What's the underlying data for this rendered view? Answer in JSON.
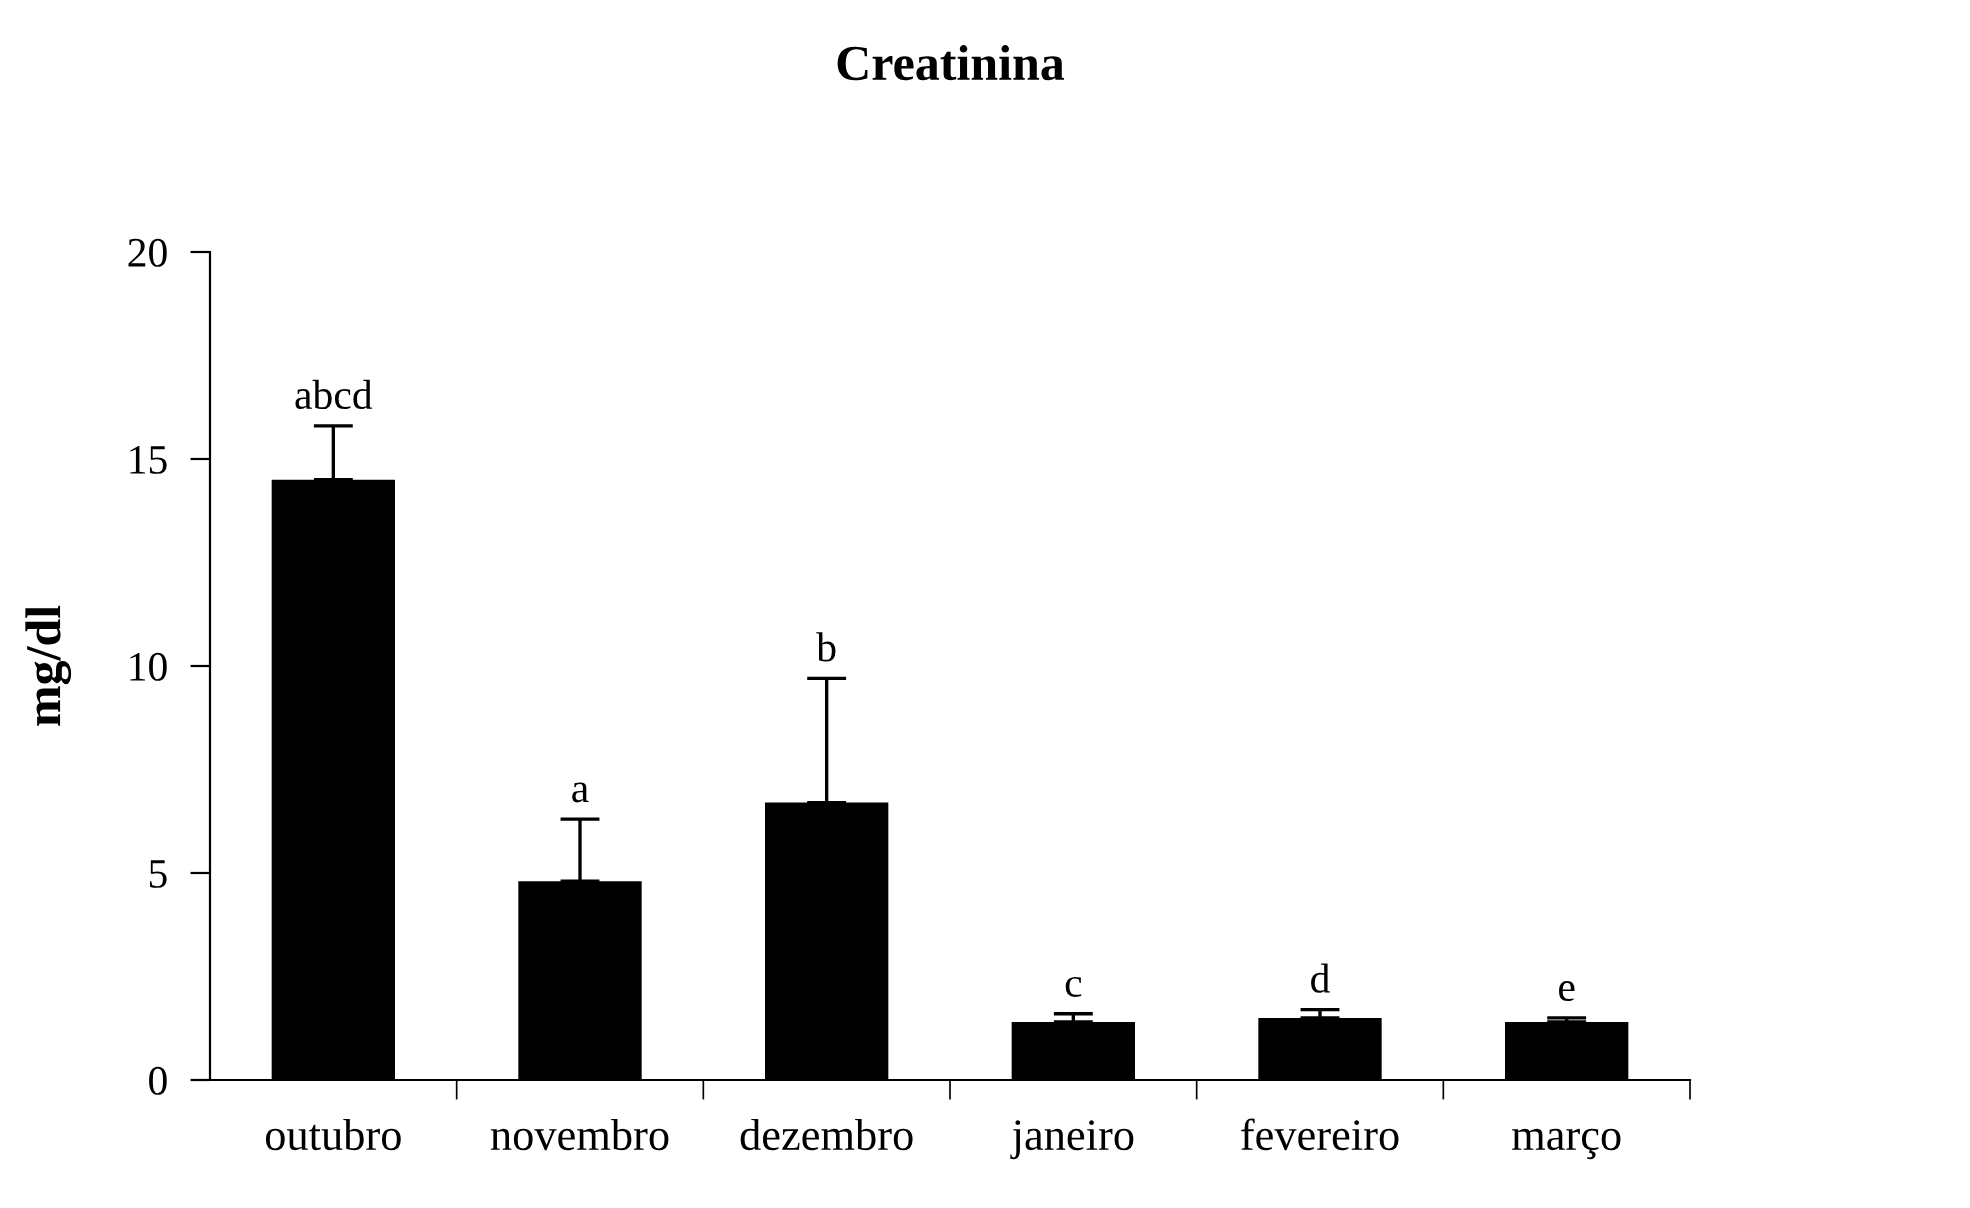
{
  "chart_data": {
    "type": "bar",
    "title": "Creatinina",
    "ylabel": "mg/dl",
    "categories": [
      "outubro",
      "novembro",
      "dezembro",
      "janeiro",
      "fevereiro",
      "março"
    ],
    "values": [
      14.5,
      4.8,
      6.7,
      1.4,
      1.5,
      1.4
    ],
    "errors": [
      [
        14.5,
        15.8
      ],
      [
        4.8,
        6.3
      ],
      [
        6.7,
        9.7
      ],
      [
        1.4,
        1.6
      ],
      [
        1.5,
        1.7
      ],
      [
        1.4,
        1.5
      ]
    ],
    "color": "#000000",
    "ylim": [
      0,
      20
    ],
    "yticks": [
      0,
      5,
      10,
      15,
      20
    ],
    "grid": false,
    "annotations": [
      "abcd",
      "a",
      "b",
      "c",
      "d",
      "e"
    ]
  }
}
